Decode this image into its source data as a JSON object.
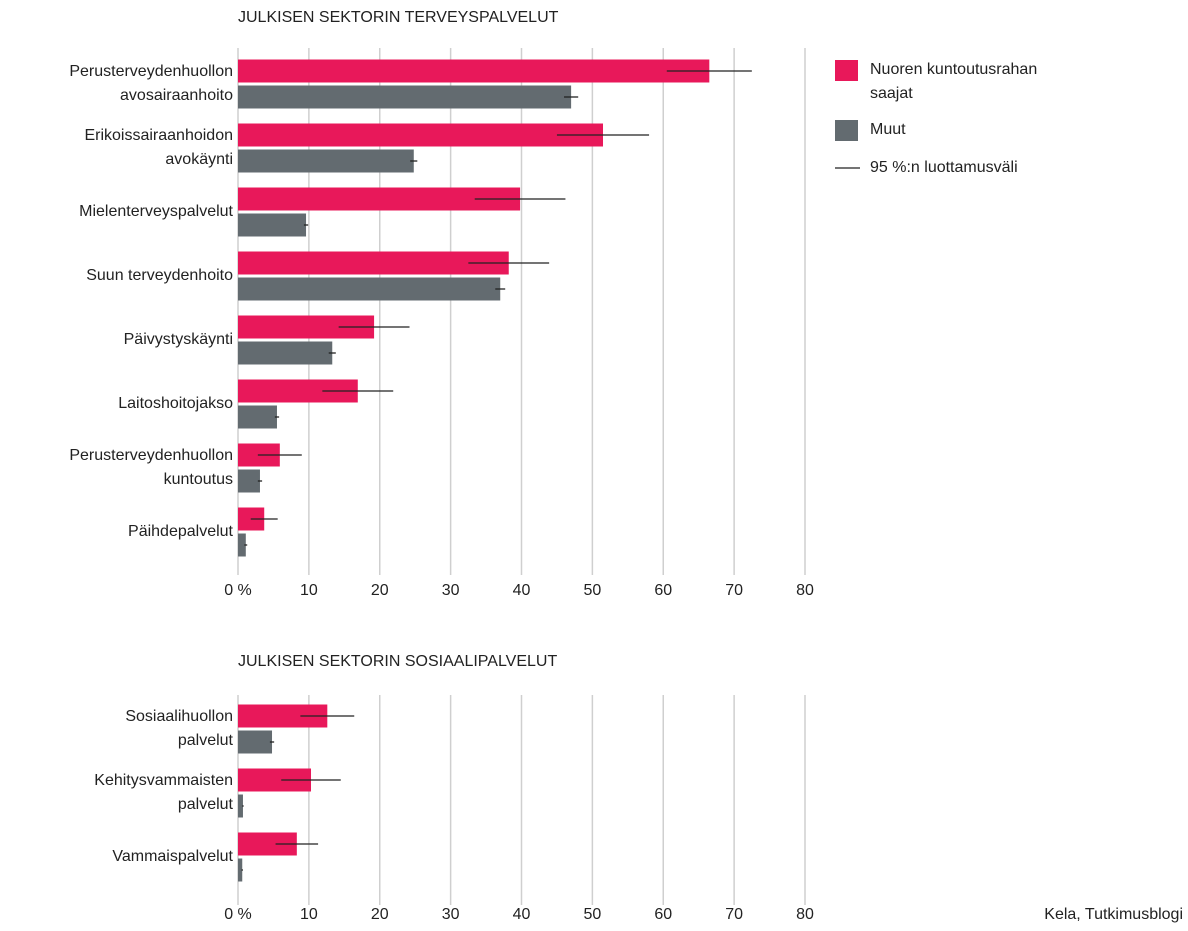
{
  "chart_data": [
    {
      "type": "bar",
      "orientation": "horizontal",
      "title": "JULKISEN SEKTORIN TERVEYSPALVELUT",
      "categories": [
        "Perusterveydenhuollon\navosairaanhoito",
        "Erikoissairaanhoidon\navokäynti",
        "Mielenterveyspalvelut",
        "Suun terveydenhoito",
        "Päivystyskäynti",
        "Laitoshoitojakso",
        "Perusterveydenhuollon\nkuntoutus",
        "Päihdepalvelut"
      ],
      "series": [
        {
          "name": "Nuoren kuntoutusrahan\nsaajat",
          "color": "#e8185a",
          "values": [
            66.5,
            51.5,
            39.8,
            38.2,
            19.2,
            16.9,
            5.9,
            3.7
          ],
          "errors": [
            6,
            6.5,
            6.4,
            5.7,
            5,
            5,
            3.1,
            1.9
          ]
        },
        {
          "name": "Muut",
          "color": "#636b70",
          "values": [
            47,
            24.8,
            9.6,
            37,
            13.3,
            5.5,
            3.1,
            1.1
          ],
          "errors": [
            1,
            0.5,
            0.3,
            0.7,
            0.5,
            0.3,
            0.3,
            0.2
          ]
        }
      ],
      "error_bar_label": "95 %:n luottamusväli",
      "xlim": [
        0,
        80
      ],
      "xticks": [
        {
          "value": 0,
          "label": "0 %"
        },
        10,
        20,
        30,
        40,
        50,
        60,
        70,
        80
      ],
      "grid": true
    },
    {
      "type": "bar",
      "orientation": "horizontal",
      "title": "JULKISEN SEKTORIN SOSIAALIPALVELUT",
      "categories": [
        "Sosiaalihuollon\npalvelut",
        "Kehitysvammaisten\npalvelut",
        "Vammaispalvelut"
      ],
      "series": [
        {
          "color": "#e8185a",
          "values": [
            12.6,
            10.3,
            8.3
          ],
          "errors": [
            3.8,
            4.2,
            3
          ]
        },
        {
          "color": "#636b70",
          "values": [
            4.8,
            0.7,
            0.6
          ],
          "errors": [
            0.3,
            0.1,
            0.1
          ]
        }
      ],
      "xlim": [
        0,
        80
      ],
      "xticks": [
        {
          "value": 0,
          "label": "0 %"
        },
        10,
        20,
        30,
        40,
        50,
        60,
        70,
        80
      ],
      "grid": true
    }
  ],
  "source": "Kela, Tutkimusblogi"
}
